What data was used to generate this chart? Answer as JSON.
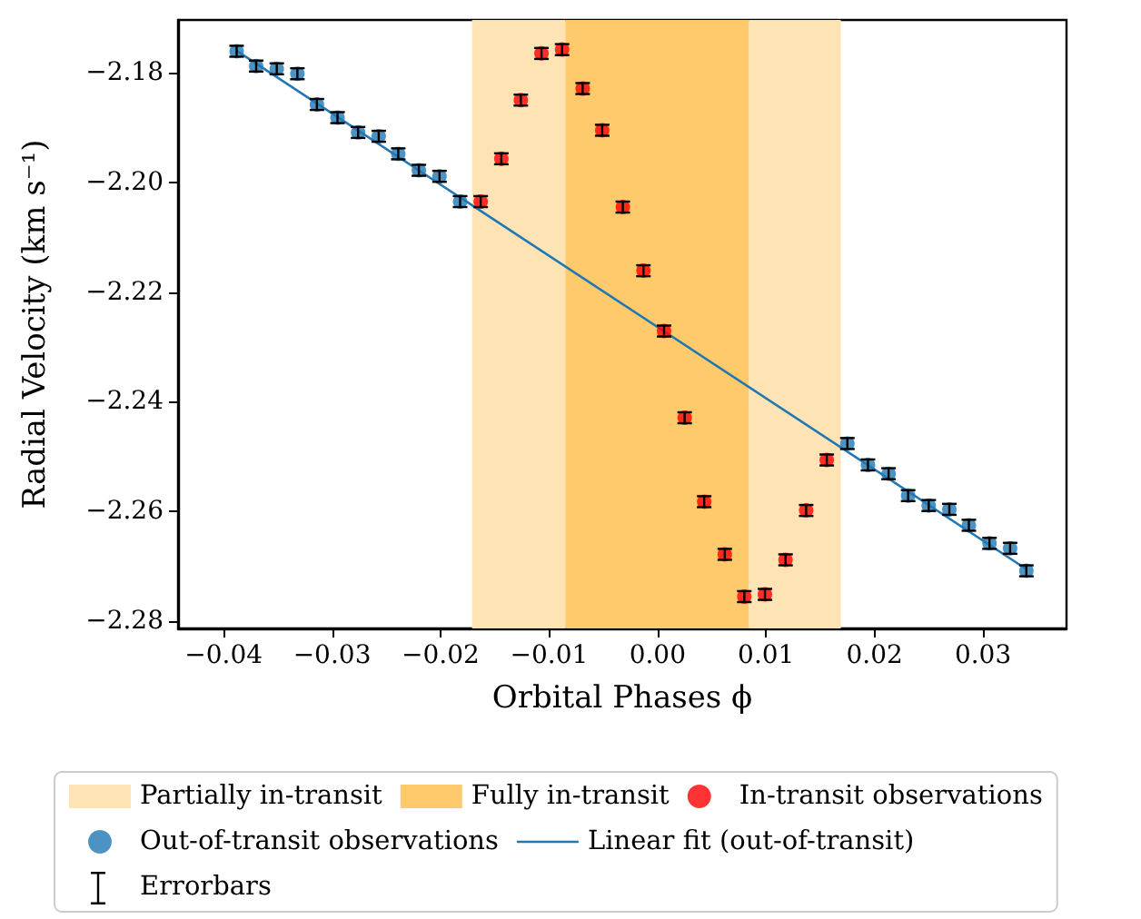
{
  "chart_data": {
    "type": "scatter",
    "xlabel": "Orbital Phases ϕ",
    "ylabel": "Radial Velocity (km s⁻¹)",
    "xlim": [
      -0.0442,
      0.0377
    ],
    "ylim": [
      -2.2813,
      -2.1704
    ],
    "xticks": [
      {
        "value": -0.04,
        "label": "−0.04"
      },
      {
        "value": -0.03,
        "label": "−0.03"
      },
      {
        "value": -0.02,
        "label": "−0.02"
      },
      {
        "value": -0.01,
        "label": "−0.01"
      },
      {
        "value": 0,
        "label": "0.00"
      },
      {
        "value": 0.01,
        "label": "0.01"
      },
      {
        "value": 0.02,
        "label": "0.02"
      },
      {
        "value": 0.03,
        "label": "0.03"
      }
    ],
    "yticks": [
      {
        "value": -2.28,
        "label": "−2.28"
      },
      {
        "value": -2.26,
        "label": "−2.26"
      },
      {
        "value": -2.24,
        "label": "−2.24"
      },
      {
        "value": -2.22,
        "label": "−2.22"
      },
      {
        "value": -2.2,
        "label": "−2.20"
      },
      {
        "value": -2.18,
        "label": "−2.18"
      }
    ],
    "bands": [
      {
        "axis": "x",
        "from": -0.0171,
        "to": -0.0085,
        "label": "Partially in-transit",
        "color": "#fee4b5"
      },
      {
        "axis": "x",
        "from": 0.0084,
        "to": 0.0169,
        "label": null,
        "color": "#fee4b5"
      },
      {
        "axis": "x",
        "from": -0.0085,
        "to": 0.0084,
        "label": "Fully in-transit",
        "color": "#ffca6c"
      }
    ],
    "series": [
      {
        "name": "In-transit observations",
        "color": "#ff0000",
        "marker": "circle",
        "x": [
          -0.0163,
          -0.0144,
          -0.0126,
          -0.0107,
          -0.0088,
          -0.0069,
          -0.0051,
          -0.0032,
          -0.0013,
          0.0006,
          0.0025,
          0.0043,
          0.0062,
          0.008,
          0.0099,
          0.0118,
          0.0137,
          0.0156
        ],
        "values": [
          -2.2035,
          -2.1957,
          -2.185,
          -2.1765,
          -2.1758,
          -2.1829,
          -2.1905,
          -2.2045,
          -2.2161,
          -2.2271,
          -2.2429,
          -2.2582,
          -2.2678,
          -2.2755,
          -2.2751,
          -2.2688,
          -2.2598,
          -2.2506
        ],
        "errors": [
          0.001,
          0.001,
          0.001,
          0.001,
          0.001,
          0.001,
          0.001,
          0.001,
          0.001,
          0.001,
          0.001,
          0.001,
          0.001,
          0.001,
          0.001,
          0.001,
          0.001,
          0.001
        ]
      },
      {
        "name": "Out-of-transit observations",
        "color": "#1f77b4",
        "marker": "circle",
        "x": [
          -0.0388,
          -0.037,
          -0.0351,
          -0.0332,
          -0.0314,
          -0.0295,
          -0.0276,
          -0.0257,
          -0.0239,
          -0.022,
          -0.0201,
          -0.0182,
          0.0175,
          0.0194,
          0.0213,
          0.0231,
          0.025,
          0.0269,
          0.0287,
          0.0306,
          0.0325,
          0.034
        ],
        "values": [
          -2.1761,
          -2.1788,
          -2.1793,
          -2.1802,
          -2.1858,
          -2.1882,
          -2.1909,
          -2.1916,
          -2.1948,
          -2.1978,
          -2.1989,
          -2.2035,
          -2.2476,
          -2.2515,
          -2.2531,
          -2.2571,
          -2.2589,
          -2.2596,
          -2.2625,
          -2.2658,
          -2.2667,
          -2.2708
        ],
        "errors": [
          0.001,
          0.001,
          0.001,
          0.001,
          0.001,
          0.001,
          0.001,
          0.001,
          0.001,
          0.001,
          0.001,
          0.001,
          0.001,
          0.001,
          0.001,
          0.001,
          0.001,
          0.001,
          0.001,
          0.001,
          0.001,
          0.001
        ]
      },
      {
        "name": "Linear fit (out-of-transit)",
        "type": "line",
        "color": "#1f77b4",
        "marker": "none",
        "line_style": "solid",
        "x": [
          -0.0388,
          0.034
        ],
        "values": [
          -2.176,
          -2.2705
        ]
      }
    ],
    "annotations": [
      "Errorbars"
    ],
    "legend": "bottom"
  }
}
